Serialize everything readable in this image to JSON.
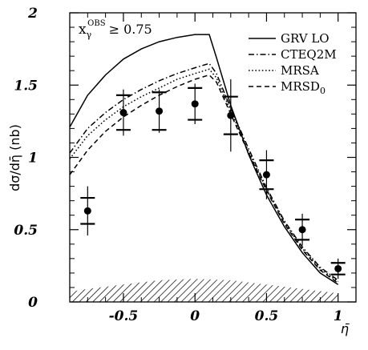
{
  "chart_data": {
    "type": "line",
    "ylabel": "dσ/dη̄ (nb)",
    "xlabel": "η̄",
    "annotation": {
      "base": "x",
      "sub": "γ",
      "sup": "OBS",
      "condition": "≥ 0.75"
    },
    "xlim": [
      -0.875,
      1.125
    ],
    "ylim": [
      0,
      2
    ],
    "x_ticks": [
      {
        "value": -0.5,
        "label": "-0.5"
      },
      {
        "value": 0,
        "label": "0"
      },
      {
        "value": 0.5,
        "label": "0.5"
      },
      {
        "value": 1,
        "label": "1"
      }
    ],
    "y_ticks": [
      {
        "value": 0,
        "label": "0"
      },
      {
        "value": 0.5,
        "label": "0.5"
      },
      {
        "value": 1,
        "label": "1"
      },
      {
        "value": 1.5,
        "label": "1.5"
      },
      {
        "value": 2,
        "label": "2"
      }
    ],
    "series": [
      {
        "name": "GRV LO",
        "name_sub": "",
        "dash": "solid",
        "x": [
          -0.875,
          -0.75,
          -0.625,
          -0.5,
          -0.375,
          -0.25,
          -0.125,
          0,
          0.1,
          0.15,
          0.25,
          0.375,
          0.5,
          0.625,
          0.75,
          0.875,
          1.0
        ],
        "y": [
          1.21,
          1.43,
          1.57,
          1.68,
          1.75,
          1.8,
          1.83,
          1.85,
          1.85,
          1.69,
          1.36,
          1.02,
          0.74,
          0.52,
          0.34,
          0.2,
          0.12
        ]
      },
      {
        "name": "CTEQ2M",
        "name_sub": "",
        "dash": "dashdot",
        "x": [
          -0.875,
          -0.75,
          -0.625,
          -0.5,
          -0.375,
          -0.25,
          -0.125,
          0,
          0.1,
          0.15,
          0.25,
          0.375,
          0.5,
          0.625,
          0.75,
          0.875,
          1.0
        ],
        "y": [
          1.03,
          1.2,
          1.31,
          1.4,
          1.47,
          1.53,
          1.58,
          1.62,
          1.65,
          1.58,
          1.34,
          1.06,
          0.79,
          0.56,
          0.38,
          0.24,
          0.15
        ]
      },
      {
        "name": "MRSA",
        "name_sub": "",
        "dash": "dotted",
        "x": [
          -0.875,
          -0.75,
          -0.625,
          -0.5,
          -0.375,
          -0.25,
          -0.125,
          0,
          0.1,
          0.15,
          0.25,
          0.375,
          0.5,
          0.625,
          0.75,
          0.875,
          1.0
        ],
        "y": [
          0.99,
          1.15,
          1.26,
          1.35,
          1.42,
          1.48,
          1.54,
          1.58,
          1.61,
          1.55,
          1.32,
          1.04,
          0.78,
          0.55,
          0.37,
          0.23,
          0.14
        ]
      },
      {
        "name": "MRSD",
        "name_sub": "0",
        "dash": "dashed",
        "x": [
          -0.875,
          -0.75,
          -0.625,
          -0.5,
          -0.375,
          -0.25,
          -0.125,
          0,
          0.1,
          0.15,
          0.25,
          0.375,
          0.5,
          0.625,
          0.75,
          0.875,
          1.0
        ],
        "y": [
          0.88,
          1.05,
          1.18,
          1.28,
          1.36,
          1.43,
          1.49,
          1.54,
          1.57,
          1.52,
          1.3,
          1.03,
          0.77,
          0.54,
          0.36,
          0.22,
          0.13
        ]
      }
    ],
    "data_points": {
      "x": [
        -0.75,
        -0.5,
        -0.25,
        0,
        0.25,
        0.5,
        0.75,
        1.0
      ],
      "y": [
        0.63,
        1.31,
        1.32,
        1.37,
        1.29,
        0.88,
        0.5,
        0.23
      ],
      "stat_error": [
        0.09,
        0.12,
        0.13,
        0.11,
        0.13,
        0.1,
        0.07,
        0.04
      ],
      "total_error": [
        0.17,
        0.16,
        0.15,
        0.14,
        0.25,
        0.17,
        0.11,
        0.07
      ]
    },
    "systematic_band": {
      "x": [
        -0.875,
        -0.75,
        -0.5,
        -0.25,
        0,
        0.25,
        0.5,
        0.75,
        1.0
      ],
      "y": [
        0.07,
        0.09,
        0.12,
        0.15,
        0.16,
        0.15,
        0.12,
        0.09,
        0.06
      ]
    }
  }
}
